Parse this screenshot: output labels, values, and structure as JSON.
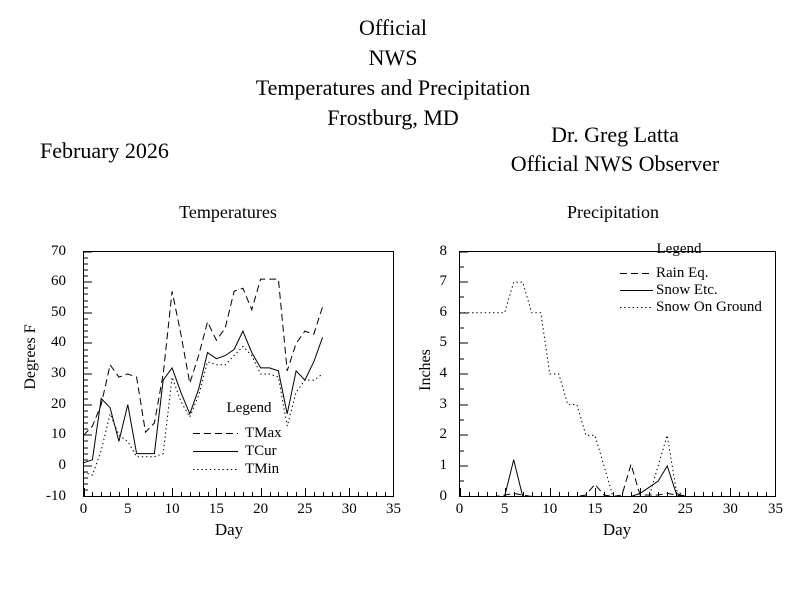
{
  "page": {
    "title_lines": [
      "Official",
      "NWS",
      "Temperatures and Precipitation",
      "Frostburg, MD"
    ],
    "month_label": "February 2026",
    "observer_lines": [
      "Dr. Greg Latta",
      "Official NWS Observer"
    ]
  },
  "colors": {
    "line": "#000000",
    "background": "#ffffff"
  },
  "chart_data": [
    {
      "type": "line",
      "title": "Temperatures",
      "xlabel": "Day",
      "ylabel": "Degrees F",
      "xlim": [
        0,
        35
      ],
      "ylim": [
        -10,
        70
      ],
      "x_major_ticks": [
        0,
        5,
        10,
        15,
        20,
        25,
        30,
        35
      ],
      "x_minor_step": 1,
      "y_major_ticks": [
        -10,
        0,
        10,
        20,
        30,
        40,
        50,
        60,
        70
      ],
      "y_minor_step": 2,
      "legend_title": "Legend",
      "legend_position": "inside-lower-middle",
      "x": [
        0,
        1,
        2,
        3,
        4,
        5,
        6,
        7,
        8,
        9,
        10,
        11,
        12,
        13,
        14,
        15,
        16,
        17,
        18,
        19,
        20,
        21,
        22,
        23,
        24,
        25,
        26,
        27
      ],
      "series": [
        {
          "name": "TMax",
          "style": "dashed",
          "values": [
            10,
            13,
            20,
            33,
            29,
            30,
            29,
            11,
            14,
            30,
            57,
            43,
            27,
            36,
            47,
            41,
            45,
            57,
            58,
            51,
            61,
            61,
            61,
            31,
            40,
            44,
            43,
            52
          ]
        },
        {
          "name": "TCur",
          "style": "solid",
          "values": [
            1,
            2,
            22,
            19,
            8,
            20,
            4,
            4,
            4,
            28,
            32,
            24,
            17,
            25,
            37,
            35,
            36,
            38,
            44,
            37,
            32,
            32,
            31,
            17,
            31,
            28,
            34,
            42
          ]
        },
        {
          "name": "TMin",
          "style": "dotted",
          "values": [
            -2,
            -3,
            5,
            17,
            10,
            8,
            3,
            3,
            3,
            4,
            29,
            21,
            16,
            23,
            34,
            33,
            33,
            36,
            39,
            36,
            30,
            30,
            29,
            13,
            24,
            28,
            28,
            30
          ]
        }
      ]
    },
    {
      "type": "line",
      "title": "Precipitation",
      "xlabel": "Day",
      "ylabel": "Inches",
      "xlim": [
        0,
        35
      ],
      "ylim": [
        0,
        8
      ],
      "x_major_ticks": [
        0,
        5,
        10,
        15,
        20,
        25,
        30,
        35
      ],
      "x_minor_step": 1,
      "y_major_ticks": [
        0,
        1,
        2,
        3,
        4,
        5,
        6,
        7,
        8
      ],
      "y_minor_step": 0.5,
      "legend_title": "Legend",
      "legend_position": "inside-upper-right",
      "x": [
        0,
        1,
        2,
        3,
        4,
        5,
        6,
        7,
        8,
        9,
        10,
        11,
        12,
        13,
        14,
        15,
        16,
        17,
        18,
        19,
        20,
        21,
        22,
        23,
        24,
        25,
        26,
        27
      ],
      "series": [
        {
          "name": "Rain Eq.",
          "style": "dashed",
          "values": [
            0,
            0,
            0,
            0,
            0,
            0.05,
            0.1,
            0.05,
            0,
            0,
            0,
            0,
            0,
            0,
            0.05,
            0.4,
            0.05,
            0,
            0.05,
            1.05,
            0.05,
            0.05,
            0.05,
            0.1,
            0.05,
            0,
            0,
            0
          ]
        },
        {
          "name": "Snow Etc.",
          "style": "solid",
          "values": [
            0,
            0,
            0,
            0,
            0,
            0,
            1.2,
            0,
            0,
            0,
            0,
            0,
            0,
            0,
            0,
            0,
            0,
            0,
            0,
            0,
            0.1,
            0.3,
            0.5,
            1,
            0.1,
            0,
            0,
            0
          ]
        },
        {
          "name": "Snow On Ground",
          "style": "dotted",
          "values": [
            6,
            6,
            6,
            6,
            6,
            6,
            7,
            7,
            6,
            6,
            4,
            4,
            3,
            3,
            2,
            2,
            1,
            0,
            0,
            0,
            0,
            0,
            1,
            2,
            0.2,
            0,
            0,
            0
          ]
        }
      ]
    }
  ]
}
